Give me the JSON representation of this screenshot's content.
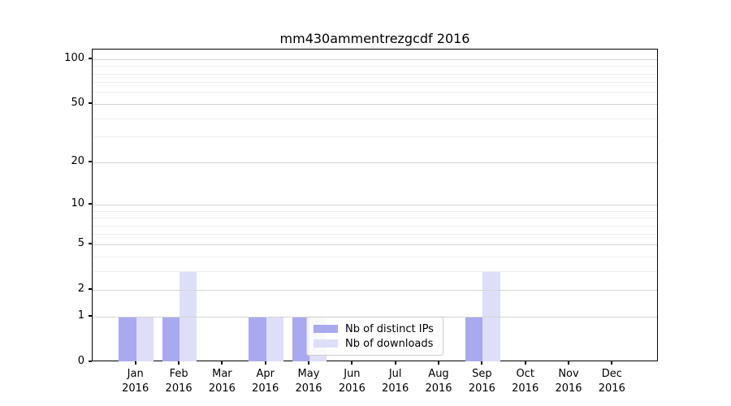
{
  "title": "mm430ammentrezgcdf 2016",
  "chart_data": {
    "type": "bar",
    "title": "mm430ammentrezgcdf 2016",
    "categories": [
      "Jan",
      "Feb",
      "Mar",
      "Apr",
      "May",
      "Jun",
      "Jul",
      "Aug",
      "Sep",
      "Oct",
      "Nov",
      "Dec"
    ],
    "year_label": "2016",
    "series": [
      {
        "name": "Nb of distinct IPs",
        "color": "#a9a9f0",
        "values": [
          1,
          1,
          0,
          1,
          1,
          0,
          0,
          0,
          1,
          0,
          0,
          0
        ]
      },
      {
        "name": "Nb of downloads",
        "color": "#dedef8",
        "values": [
          1,
          3,
          0,
          1,
          1,
          0,
          0,
          0,
          3,
          0,
          0,
          0
        ]
      }
    ],
    "yscale": "log1p",
    "ylim": [
      0,
      115
    ],
    "yticks_major": [
      0,
      1,
      2,
      5,
      10,
      20,
      50,
      100
    ],
    "yticks_minor": [
      3,
      4,
      6,
      7,
      8,
      9,
      30,
      40,
      60,
      70,
      80,
      90
    ],
    "grid": "both",
    "legend_position": "lower center",
    "colors": {
      "major_grid": "#d4d4d4",
      "minor_grid": "#ededed",
      "spine": "#000000",
      "background": "#ffffff",
      "legend_border": "#cccccc"
    }
  }
}
